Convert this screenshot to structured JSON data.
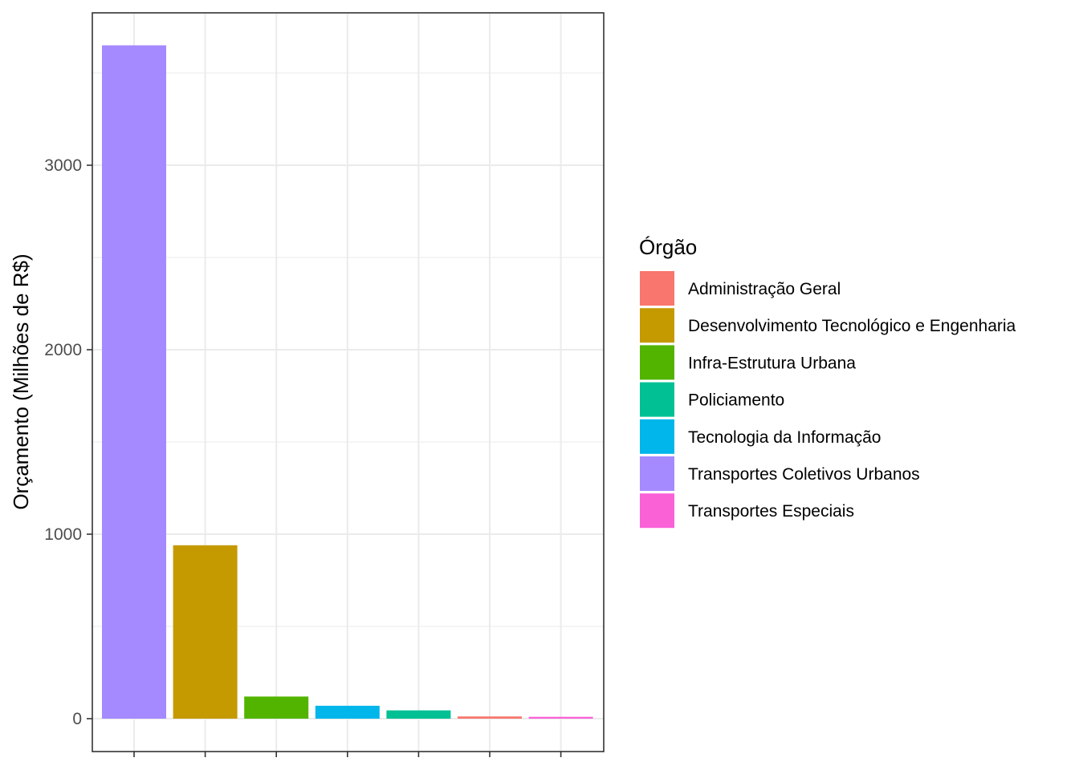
{
  "chart_data": {
    "type": "bar",
    "title": "",
    "xlabel": "",
    "ylabel": "Orçamento (Milhões de R$)",
    "ylim": [
      -180,
      3830
    ],
    "yticks": [
      0,
      1000,
      2000,
      3000
    ],
    "grid": true,
    "legend_position": "right",
    "legend_title": "Órgão",
    "categories": [
      "Transportes Coletivos Urbanos",
      "Desenvolvimento Tecnológico e Engenharia",
      "Infra-Estrutura Urbana",
      "Tecnologia da Informação",
      "Policiamento",
      "Administração Geral",
      "Transportes Especiais"
    ],
    "values": [
      3650,
      940,
      120,
      70,
      45,
      12,
      10
    ],
    "colors": {
      "Administração Geral": "#F8766D",
      "Desenvolvimento Tecnológico e Engenharia": "#C49A00",
      "Infra-Estrutura Urbana": "#53B400",
      "Policiamento": "#00C094",
      "Tecnologia da Informação": "#00B6EB",
      "Transportes Coletivos Urbanos": "#A58AFF",
      "Transportes Especiais": "#FB61D7"
    },
    "legend_entries": [
      "Administração Geral",
      "Desenvolvimento Tecnológico e Engenharia",
      "Infra-Estrutura Urbana",
      "Policiamento",
      "Tecnologia da Informação",
      "Transportes Coletivos Urbanos",
      "Transportes Especiais"
    ]
  }
}
